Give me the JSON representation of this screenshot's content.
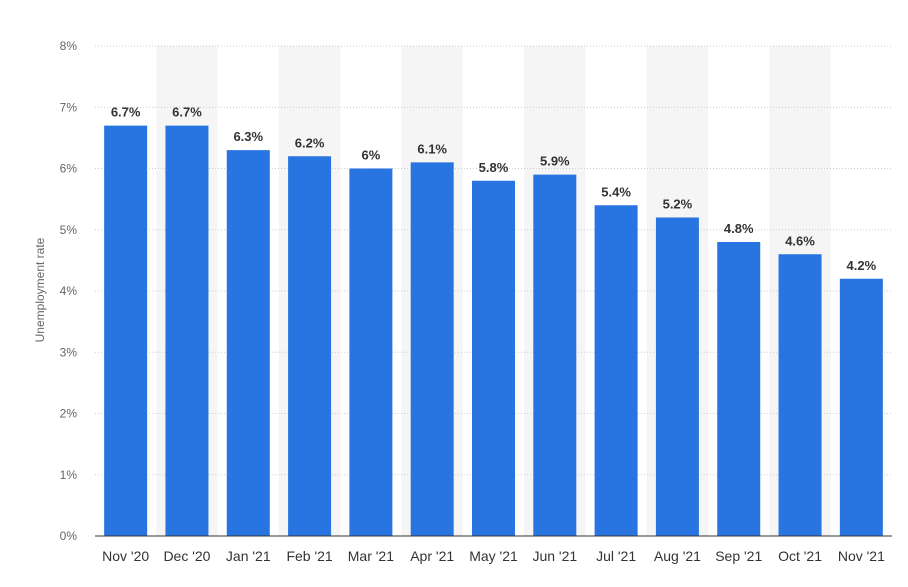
{
  "chart_data": {
    "type": "bar",
    "title": "",
    "xlabel": "",
    "ylabel": "Unemployment rate",
    "ylim": [
      0,
      8
    ],
    "yticks": [
      "0%",
      "1%",
      "2%",
      "3%",
      "4%",
      "5%",
      "6%",
      "7%",
      "8%"
    ],
    "grid": true,
    "categories": [
      "Nov '20",
      "Dec '20",
      "Jan '21",
      "Feb '21",
      "Mar '21",
      "Apr '21",
      "May '21",
      "Jun '21",
      "Jul '21",
      "Aug '21",
      "Sep '21",
      "Oct '21",
      "Nov '21"
    ],
    "values": [
      6.7,
      6.7,
      6.3,
      6.2,
      6,
      6.1,
      5.8,
      5.9,
      5.4,
      5.2,
      4.8,
      4.6,
      4.2
    ],
    "data_labels": [
      "6.7%",
      "6.7%",
      "6.3%",
      "6.2%",
      "6%",
      "6.1%",
      "5.8%",
      "5.9%",
      "5.4%",
      "5.2%",
      "4.8%",
      "4.6%",
      "4.2%"
    ],
    "bar_color": "#2874e0",
    "band_color": "#f5f5f5",
    "grid_color": "#cccccc",
    "axis_color": "#333333"
  }
}
